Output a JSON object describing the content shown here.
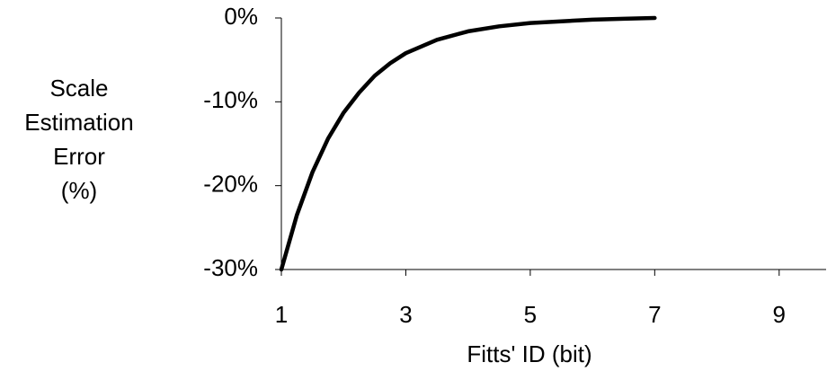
{
  "chart_data": {
    "type": "line",
    "title": "",
    "xlabel": "Fitts' ID (bit)",
    "ylabel_lines": [
      "Scale",
      "Estimation",
      "Error",
      "(%)"
    ],
    "xlim": [
      1,
      10
    ],
    "ylim": [
      -30,
      0
    ],
    "x_ticks": [
      1,
      3,
      5,
      7,
      9
    ],
    "x_tick_labels": [
      "1",
      "3",
      "5",
      "7",
      "9"
    ],
    "y_ticks": [
      0,
      -10,
      -20,
      -30
    ],
    "y_tick_labels": [
      "0%",
      "-10%",
      "-20%",
      "-30%"
    ],
    "grid": false,
    "legend": "none",
    "line_color": "#000000",
    "series": [
      {
        "x": [
          1.0,
          1.25,
          1.5,
          1.75,
          2.0,
          2.25,
          2.5,
          2.75,
          3.0,
          3.5,
          4.0,
          4.5,
          5.0,
          5.5,
          6.0,
          6.5,
          7.0
        ],
        "y": [
          -30.0,
          -23.5,
          -18.4,
          -14.4,
          -11.3,
          -8.9,
          -6.9,
          -5.4,
          -4.2,
          -2.6,
          -1.6,
          -1.0,
          -0.6,
          -0.4,
          -0.2,
          -0.1,
          0.0
        ]
      }
    ]
  }
}
